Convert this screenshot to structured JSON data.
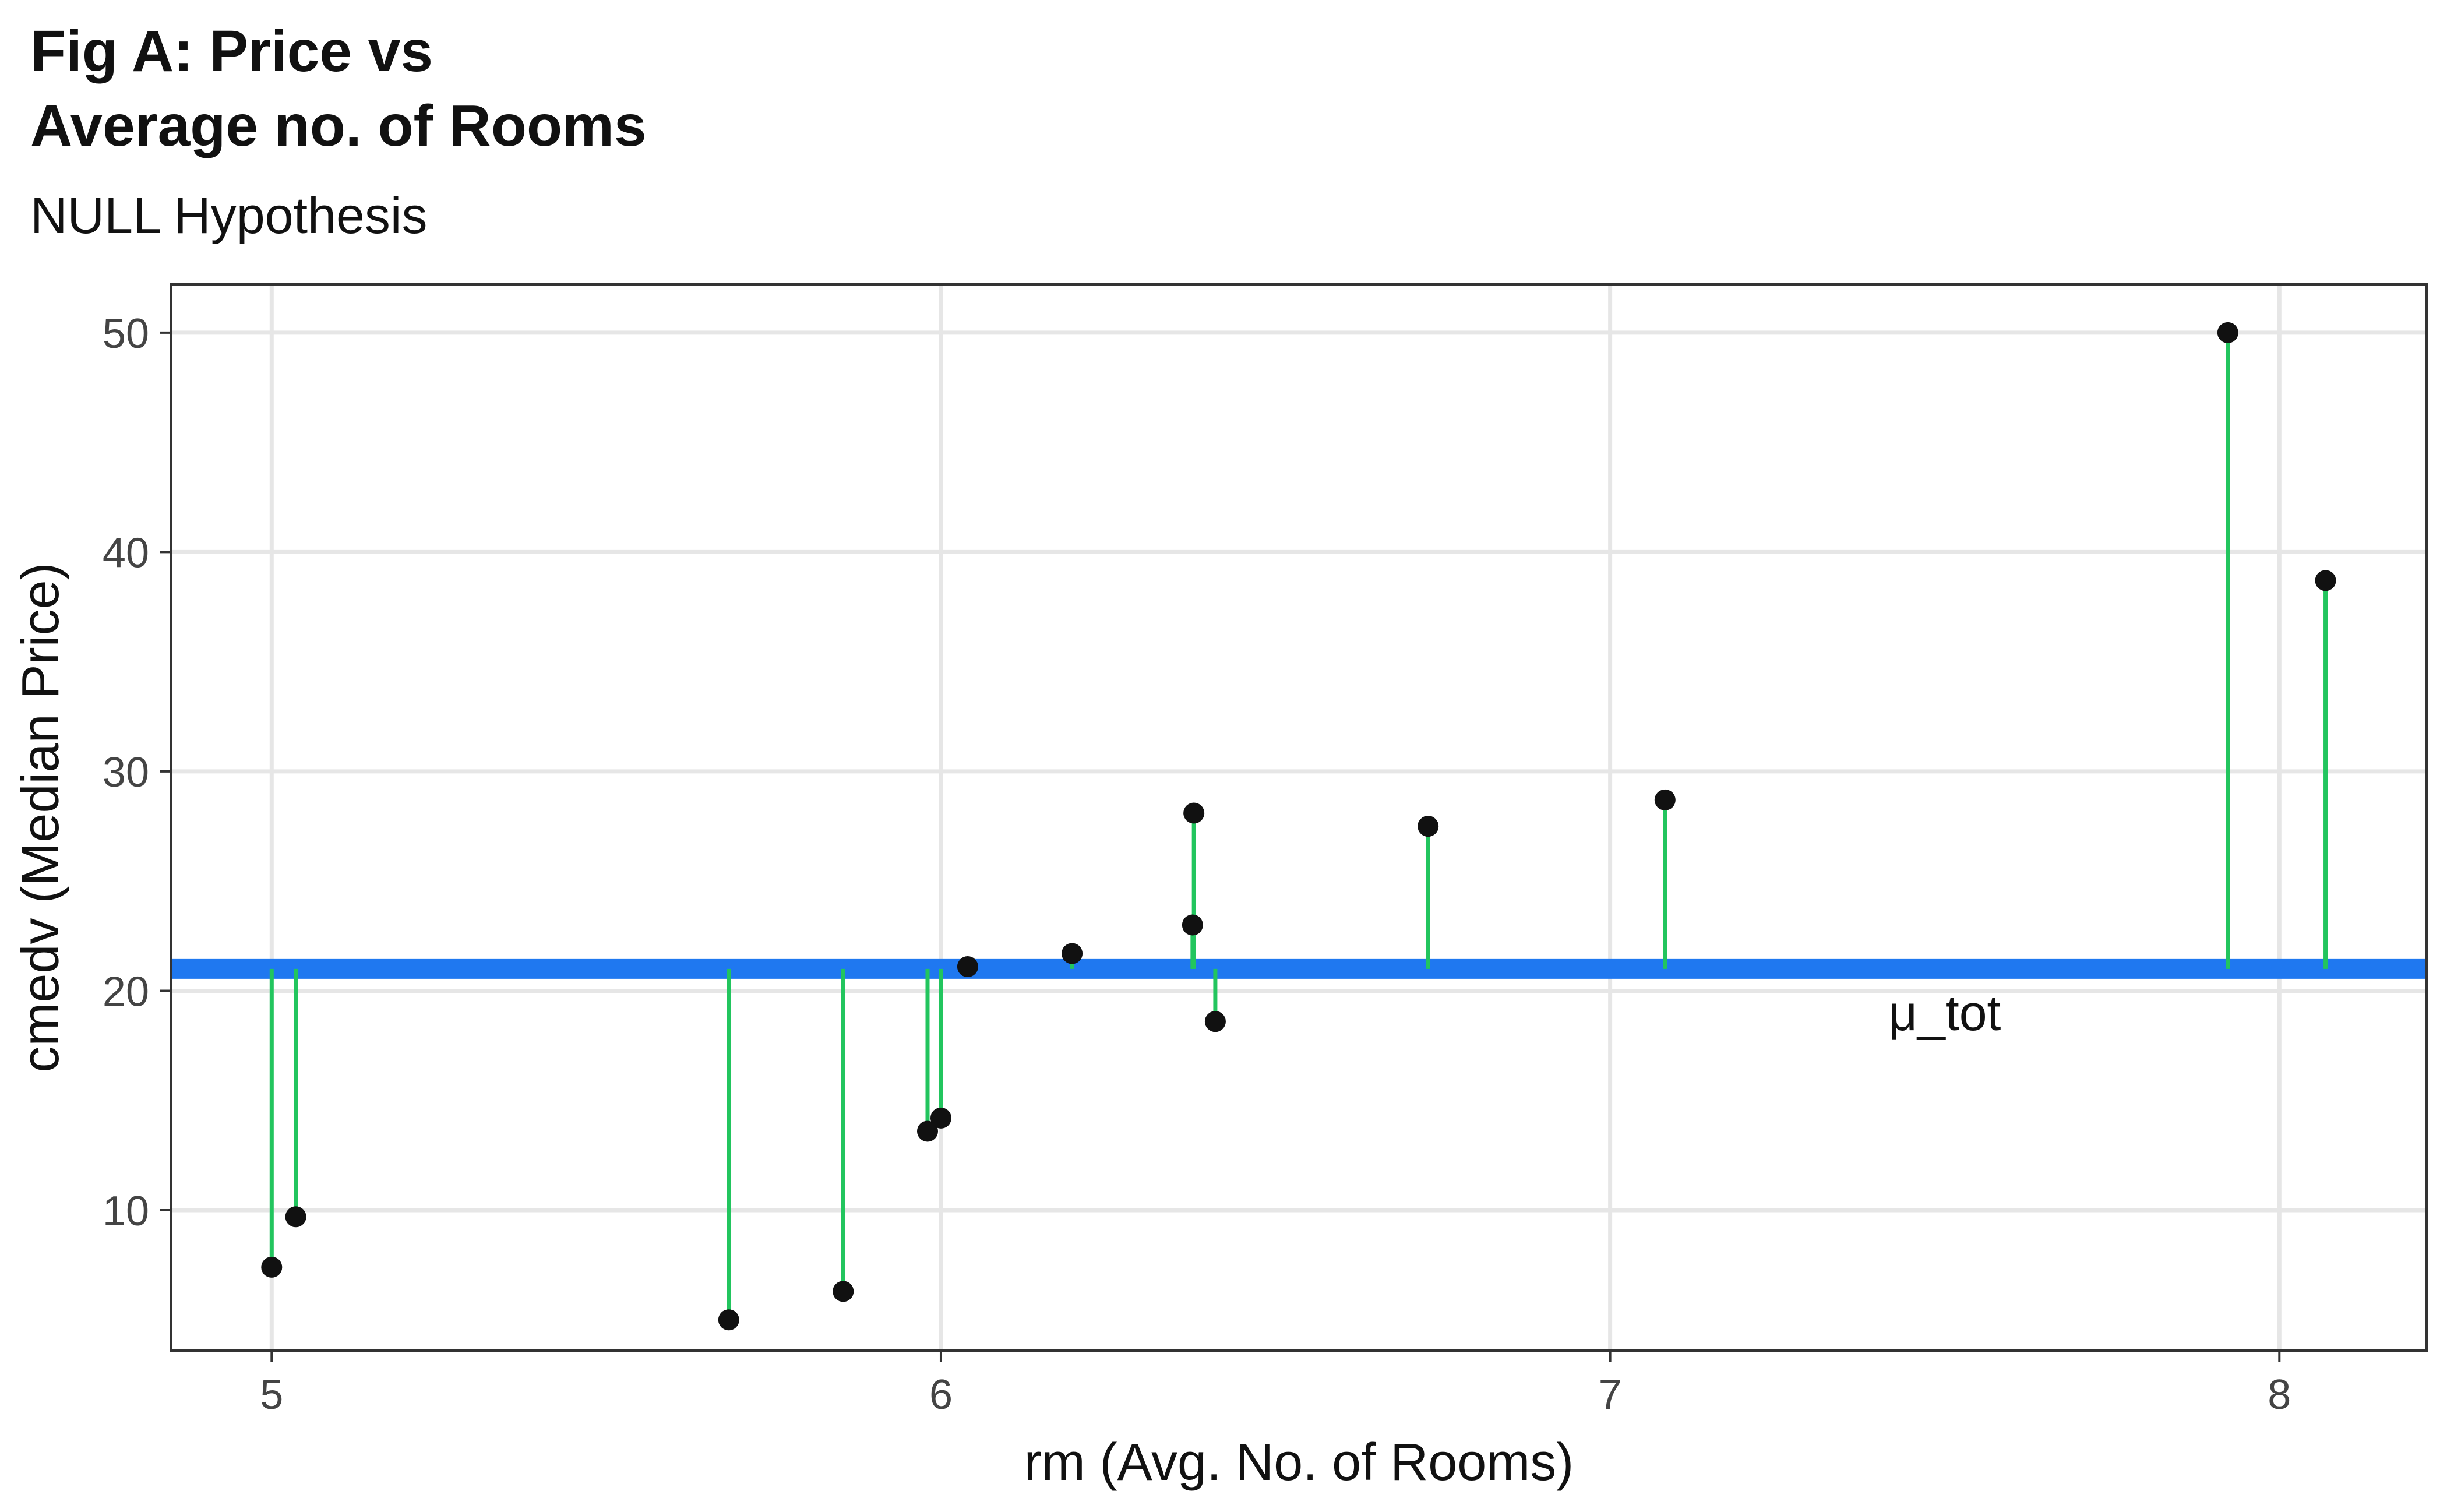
{
  "colors": {
    "mean_line": "#1f78f0",
    "residual": "#22c55e",
    "point": "#111111",
    "grid": "#e6e6e6",
    "panel_border": "#333333"
  },
  "chart_data": {
    "type": "scatter",
    "title_line1": "Fig A: Price vs",
    "title_line2": "Average no. of Rooms",
    "subtitle": "NULL Hypothesis",
    "xlabel": "rm (Avg. No. of Rooms)",
    "ylabel": "cmedv (Median Price)",
    "xlim": [
      4.85,
      8.22
    ],
    "ylim": [
      3.6,
      52.2
    ],
    "xticks": [
      5,
      6,
      7,
      8
    ],
    "xtick_labels": [
      "5",
      "6",
      "7",
      "8"
    ],
    "yticks": [
      10,
      20,
      30,
      40,
      50
    ],
    "ytick_labels": [
      "10",
      "20",
      "30",
      "40",
      "50"
    ],
    "grid": true,
    "mean_value": 21,
    "mean_label": "μ_tot",
    "mean_label_position": {
      "x": 7.5,
      "y": 19
    },
    "points": [
      {
        "x": 5.0,
        "y": 7.4
      },
      {
        "x": 5.036,
        "y": 9.7
      },
      {
        "x": 5.683,
        "y": 5.0
      },
      {
        "x": 5.854,
        "y": 6.3
      },
      {
        "x": 5.98,
        "y": 13.6
      },
      {
        "x": 6.0,
        "y": 14.2
      },
      {
        "x": 6.04,
        "y": 21.1
      },
      {
        "x": 6.196,
        "y": 21.7
      },
      {
        "x": 6.376,
        "y": 23.0
      },
      {
        "x": 6.378,
        "y": 28.1
      },
      {
        "x": 6.41,
        "y": 18.6
      },
      {
        "x": 6.728,
        "y": 27.5
      },
      {
        "x": 7.082,
        "y": 28.7
      },
      {
        "x": 7.923,
        "y": 50.0
      },
      {
        "x": 8.069,
        "y": 38.7
      }
    ]
  }
}
